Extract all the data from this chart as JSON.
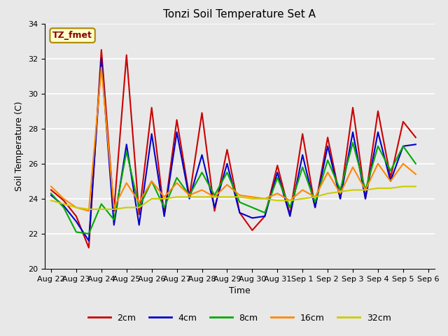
{
  "title": "Tonzi Soil Temperature Set A",
  "xlabel": "Time",
  "ylabel": "Soil Temperature (C)",
  "annotation": "TZ_fmet",
  "ylim": [
    20,
    34
  ],
  "xtick_labels": [
    "Aug 22",
    "Aug 23",
    "Aug 24",
    "Aug 25",
    "Aug 26",
    "Aug 27",
    "Aug 28",
    "Aug 29",
    "Aug 30",
    "Aug 31",
    "Sep 1",
    "Sep 2",
    "Sep 3",
    "Sep 4",
    "Sep 5",
    "Sep 6"
  ],
  "series": {
    "2cm": {
      "color": "#cc0000",
      "y": [
        24.5,
        23.9,
        23.0,
        21.2,
        32.5,
        23.3,
        32.2,
        23.1,
        29.2,
        23.1,
        28.5,
        24.1,
        28.9,
        23.3,
        26.8,
        23.2,
        22.2,
        23.0,
        25.9,
        23.1,
        27.7,
        23.5,
        27.5,
        24.0,
        29.2,
        24.0,
        29.0,
        25.2,
        28.4,
        27.5
      ]
    },
    "4cm": {
      "color": "#0000cc",
      "y": [
        24.2,
        23.6,
        22.7,
        21.6,
        32.0,
        22.5,
        27.1,
        22.5,
        27.7,
        23.0,
        27.8,
        24.0,
        26.5,
        23.5,
        26.0,
        23.2,
        22.9,
        23.0,
        25.5,
        23.0,
        26.5,
        23.5,
        27.0,
        24.0,
        27.8,
        24.0,
        27.8,
        25.0,
        27.0,
        27.1
      ]
    },
    "8cm": {
      "color": "#00aa00",
      "y": [
        24.3,
        23.5,
        22.1,
        22.0,
        23.7,
        22.8,
        26.7,
        23.5,
        25.0,
        23.5,
        25.2,
        24.2,
        25.5,
        24.2,
        25.5,
        23.8,
        23.5,
        23.2,
        25.2,
        23.5,
        25.8,
        23.8,
        26.2,
        24.5,
        27.2,
        24.5,
        27.0,
        25.6,
        27.0,
        26.0
      ]
    },
    "16cm": {
      "color": "#ff8800",
      "y": [
        24.7,
        24.0,
        23.5,
        23.3,
        31.5,
        23.5,
        24.9,
        23.8,
        25.0,
        24.1,
        24.9,
        24.2,
        24.5,
        24.1,
        24.8,
        24.2,
        24.1,
        24.0,
        24.3,
        23.9,
        24.5,
        24.1,
        25.5,
        24.3,
        25.8,
        24.5,
        26.0,
        25.0,
        26.0,
        25.4
      ]
    },
    "32cm": {
      "color": "#cccc00",
      "y": [
        23.9,
        23.7,
        23.5,
        23.4,
        23.4,
        23.4,
        23.5,
        23.5,
        24.0,
        24.0,
        24.1,
        24.1,
        24.1,
        24.1,
        24.1,
        24.1,
        24.0,
        24.0,
        23.9,
        23.9,
        24.0,
        24.1,
        24.3,
        24.4,
        24.5,
        24.5,
        24.6,
        24.6,
        24.7,
        24.7
      ]
    }
  },
  "legend": [
    {
      "label": "2cm",
      "color": "#cc0000"
    },
    {
      "label": "4cm",
      "color": "#0000cc"
    },
    {
      "label": "8cm",
      "color": "#00aa00"
    },
    {
      "label": "16cm",
      "color": "#ff8800"
    },
    {
      "label": "32cm",
      "color": "#cccc00"
    }
  ],
  "bg_color": "#e8e8e8",
  "plot_bg_color": "#e8e8e8",
  "annotation_bg": "#ffffcc",
  "annotation_fg": "#880000",
  "title_fontsize": 11,
  "axis_fontsize": 9,
  "tick_fontsize": 8
}
